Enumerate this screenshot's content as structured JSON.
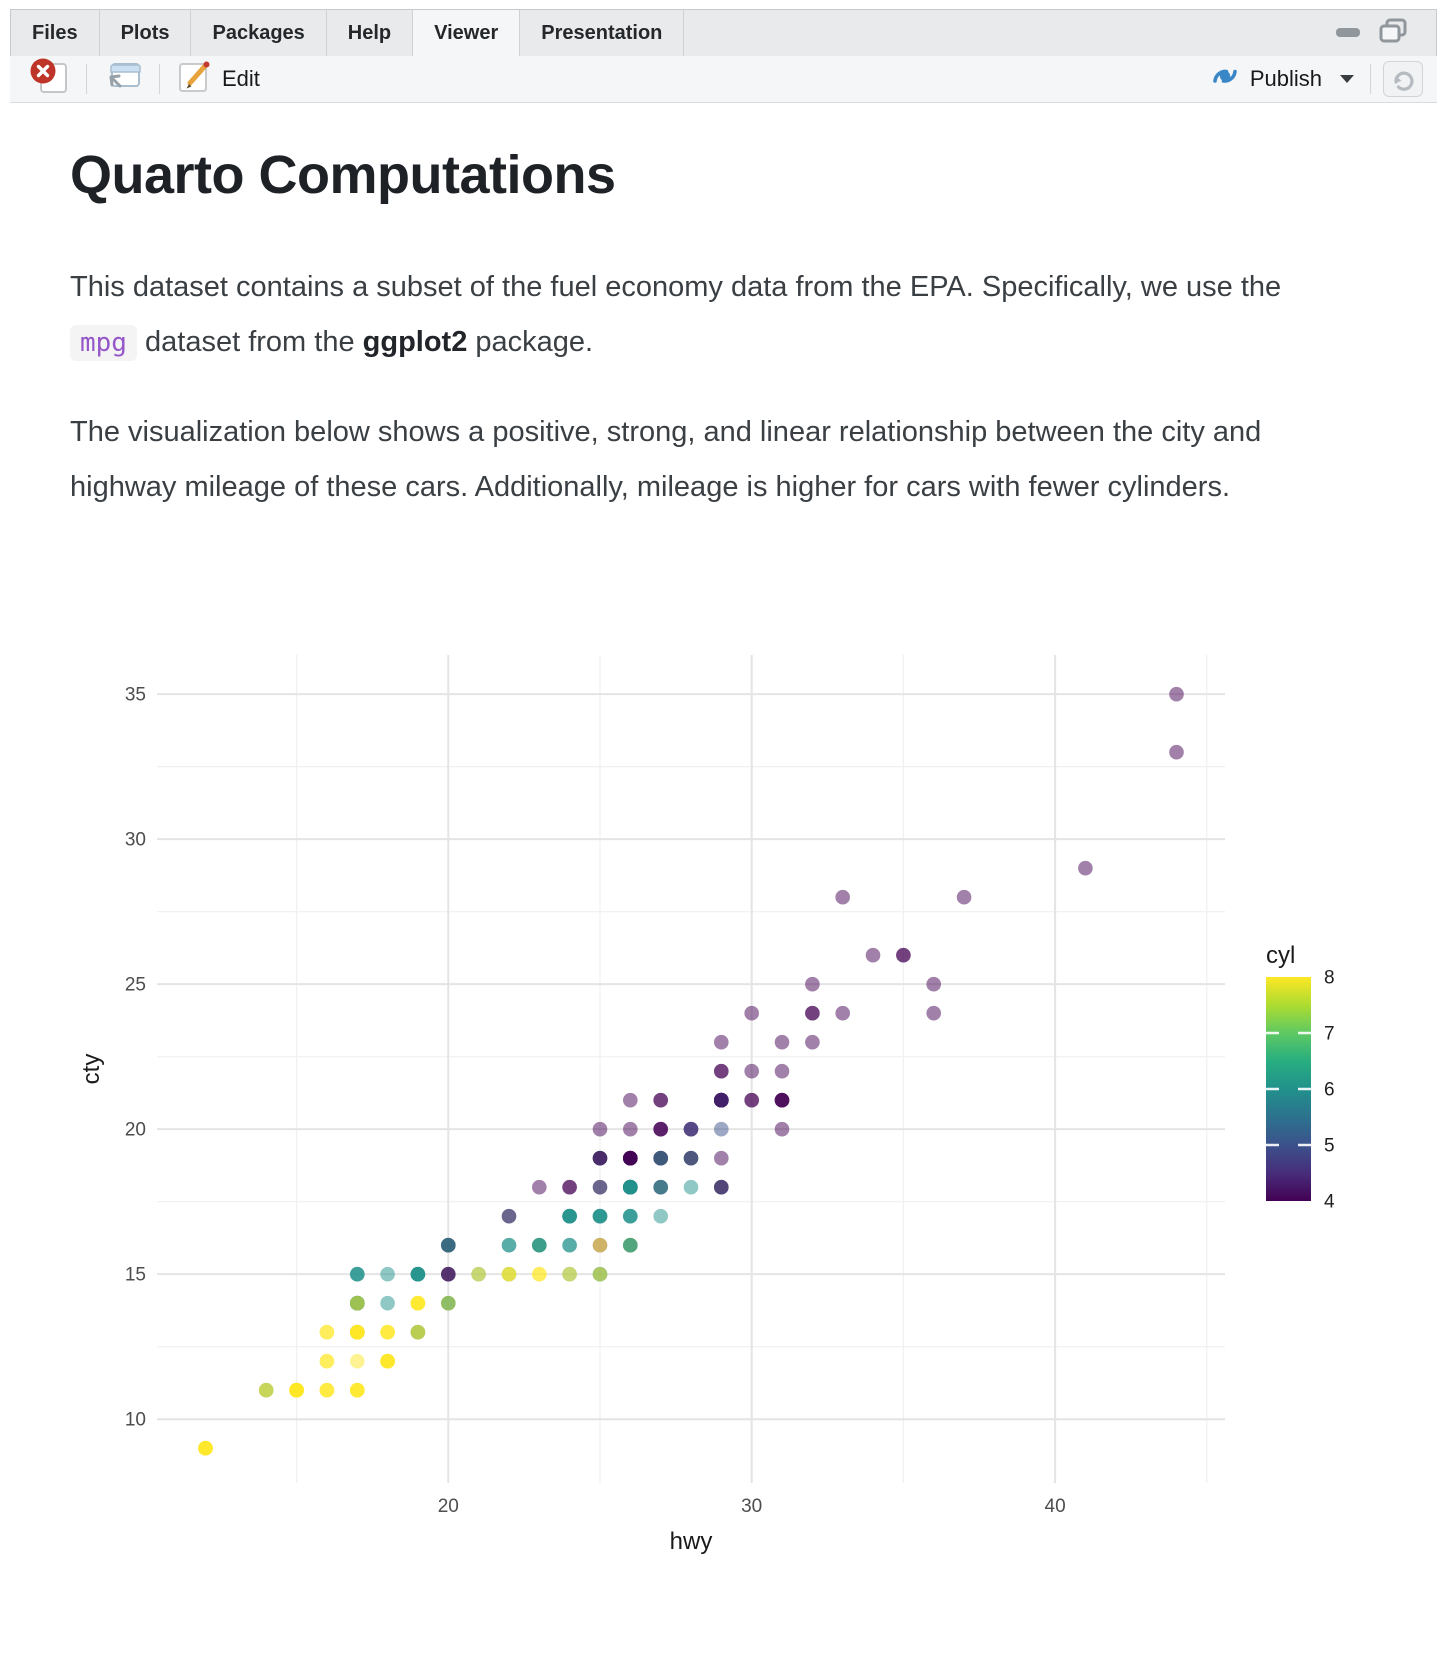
{
  "tabbar": {
    "tabs": [
      {
        "label": "Files"
      },
      {
        "label": "Plots"
      },
      {
        "label": "Packages"
      },
      {
        "label": "Help"
      },
      {
        "label": "Viewer",
        "active": true
      },
      {
        "label": "Presentation"
      }
    ]
  },
  "toolbar": {
    "edit_label": "Edit",
    "publish_label": "Publish"
  },
  "icons": {
    "stop_glyph": "✕",
    "caret_glyph": "▾"
  },
  "colors": {
    "publish_blue": "#3A87C8",
    "stop_red": "#BE3428",
    "code_text": "#9557C8",
    "code_bg": "#F4F4F5",
    "pencil_gold": "#E8A33C",
    "pencil_tip_red": "#C23B2E",
    "tick_label_gray": "#4D4D4D"
  },
  "document": {
    "title": "Quarto Computations",
    "p1_before": "This dataset contains a subset of the fuel economy data from the EPA. Specifically, we use the ",
    "p1_code": "mpg",
    "p1_mid": " dataset from the ",
    "p1_bold": "ggplot2",
    "p1_after": " package.",
    "p2": "The visualization below shows a positive, strong, and linear relationship between the city and highway mileage of these cars. Additionally, mileage is higher for cars with fewer cylinders."
  },
  "chart_data": {
    "type": "scatter",
    "xlabel": "hwy",
    "ylabel": "cty",
    "legend_title": "cyl",
    "xlim": [
      10.4,
      45.6
    ],
    "ylim": [
      7.8,
      36.35
    ],
    "x_ticks_major": [
      20,
      30,
      40
    ],
    "x_ticks_minor": [
      15,
      25,
      35,
      45
    ],
    "y_ticks_major": [
      10,
      15,
      20,
      25,
      30,
      35
    ],
    "y_ticks_minor": [
      12.5,
      17.5,
      22.5,
      27.5,
      32.5
    ],
    "grid": {
      "major_color": "#E4E4E4",
      "minor_color": "#F0F0F0",
      "major_width": 2,
      "minor_width": 1.2
    },
    "point_alpha": 0.5,
    "point_radius": 7.3,
    "color_scale": {
      "4": "#440154",
      "5": "#3B528B",
      "6": "#21918C",
      "8": "#FDE725"
    },
    "legend_range": [
      4,
      8
    ],
    "legend_labels": [
      "8",
      "7",
      "6",
      "5",
      "4"
    ],
    "legend_ticks": [
      7,
      6,
      5
    ],
    "viridis_stops": [
      "#440154",
      "#472D7B",
      "#3B528B",
      "#2C728E",
      "#21918C",
      "#28AE80",
      "#5EC962",
      "#ADDC30",
      "#FDE725"
    ],
    "points": [
      [
        12,
        9,
        [
          8,
          8,
          8,
          8,
          8
        ]
      ],
      [
        14,
        11,
        [
          8,
          6,
          8
        ]
      ],
      [
        15,
        11,
        [
          8,
          8,
          8,
          8,
          8,
          8,
          8,
          8
        ]
      ],
      [
        16,
        11,
        [
          8,
          8,
          8
        ]
      ],
      [
        17,
        11,
        [
          8,
          8,
          8,
          8
        ]
      ],
      [
        16,
        12,
        [
          8,
          8
        ]
      ],
      [
        17,
        12,
        [
          8
        ]
      ],
      [
        18,
        12,
        [
          8,
          8,
          8,
          8,
          8
        ]
      ],
      [
        16,
        13,
        [
          8,
          8
        ]
      ],
      [
        17,
        13,
        [
          8,
          6,
          6,
          8,
          8,
          8,
          8,
          8,
          8,
          8,
          8
        ]
      ],
      [
        18,
        13,
        [
          8,
          8,
          8
        ]
      ],
      [
        19,
        13,
        [
          6,
          8,
          6,
          8
        ]
      ],
      [
        17,
        14,
        [
          8,
          6,
          6,
          6,
          6,
          6,
          8,
          6,
          6,
          8
        ]
      ],
      [
        18,
        14,
        [
          6
        ]
      ],
      [
        19,
        14,
        [
          8,
          8,
          8,
          8
        ]
      ],
      [
        20,
        14,
        [
          8,
          8,
          8,
          6
        ]
      ],
      [
        17,
        15,
        [
          6,
          6,
          6
        ]
      ],
      [
        18,
        15,
        [
          6
        ]
      ],
      [
        19,
        15,
        [
          6,
          6,
          6,
          6,
          6
        ]
      ],
      [
        20,
        15,
        [
          6,
          4,
          4
        ]
      ],
      [
        21,
        15,
        [
          6,
          8
        ]
      ],
      [
        22,
        15,
        [
          6,
          8,
          8
        ]
      ],
      [
        23,
        15,
        [
          8,
          8
        ]
      ],
      [
        24,
        15,
        [
          6,
          8
        ]
      ],
      [
        25,
        15,
        [
          6,
          6,
          8
        ]
      ],
      [
        20,
        16,
        [
          4,
          6,
          4,
          6
        ]
      ],
      [
        22,
        16,
        [
          6,
          6
        ]
      ],
      [
        23,
        16,
        [
          8,
          6,
          6,
          6
        ]
      ],
      [
        24,
        16,
        [
          6,
          6
        ]
      ],
      [
        25,
        16,
        [
          4,
          8
        ]
      ],
      [
        26,
        16,
        [
          6,
          8,
          8,
          6,
          6
        ]
      ],
      [
        22,
        17,
        [
          6,
          4
        ]
      ],
      [
        24,
        17,
        [
          6,
          6,
          6,
          6,
          6
        ]
      ],
      [
        25,
        17,
        [
          6,
          6,
          6,
          6
        ]
      ],
      [
        26,
        17,
        [
          6,
          6,
          6
        ]
      ],
      [
        27,
        17,
        [
          6
        ]
      ],
      [
        23,
        18,
        [
          4
        ]
      ],
      [
        24,
        18,
        [
          4,
          4
        ]
      ],
      [
        25,
        18,
        [
          6,
          4
        ]
      ],
      [
        26,
        18,
        [
          6,
          4,
          6,
          6,
          4,
          6,
          6,
          6,
          6,
          6,
          6,
          6,
          6,
          6
        ]
      ],
      [
        27,
        18,
        [
          6,
          4,
          6
        ]
      ],
      [
        28,
        18,
        [
          6
        ]
      ],
      [
        29,
        18,
        [
          4,
          6,
          4
        ]
      ],
      [
        25,
        19,
        [
          6,
          6,
          4,
          4
        ]
      ],
      [
        26,
        19,
        [
          4,
          6,
          4,
          4,
          4,
          4,
          4,
          4
        ]
      ],
      [
        27,
        19,
        [
          4,
          4,
          4,
          6
        ]
      ],
      [
        28,
        19,
        [
          6,
          6,
          4
        ]
      ],
      [
        29,
        19,
        [
          4
        ]
      ],
      [
        25,
        20,
        [
          4
        ]
      ],
      [
        26,
        20,
        [
          4
        ]
      ],
      [
        27,
        20,
        [
          4,
          4,
          4
        ]
      ],
      [
        28,
        20,
        [
          4,
          4,
          5
        ]
      ],
      [
        29,
        20,
        [
          5
        ]
      ],
      [
        31,
        20,
        [
          4
        ]
      ],
      [
        26,
        21,
        [
          4
        ]
      ],
      [
        27,
        21,
        [
          4,
          4
        ]
      ],
      [
        29,
        21,
        [
          4,
          4,
          4,
          4,
          4,
          4,
          4,
          4,
          4,
          4,
          5,
          5,
          4
        ]
      ],
      [
        30,
        21,
        [
          4,
          4
        ]
      ],
      [
        31,
        21,
        [
          4,
          4,
          4,
          4
        ]
      ],
      [
        29,
        22,
        [
          4,
          4
        ]
      ],
      [
        30,
        22,
        [
          4
        ]
      ],
      [
        31,
        22,
        [
          4
        ]
      ],
      [
        29,
        23,
        [
          4
        ]
      ],
      [
        31,
        23,
        [
          4
        ]
      ],
      [
        32,
        23,
        [
          4
        ]
      ],
      [
        30,
        24,
        [
          4
        ]
      ],
      [
        32,
        24,
        [
          4,
          4
        ]
      ],
      [
        33,
        24,
        [
          4
        ]
      ],
      [
        36,
        24,
        [
          4
        ]
      ],
      [
        32,
        25,
        [
          4
        ]
      ],
      [
        36,
        25,
        [
          4
        ]
      ],
      [
        34,
        26,
        [
          4
        ]
      ],
      [
        35,
        26,
        [
          4,
          4
        ]
      ],
      [
        33,
        28,
        [
          4
        ]
      ],
      [
        37,
        28,
        [
          4
        ]
      ],
      [
        41,
        29,
        [
          4
        ]
      ],
      [
        44,
        33,
        [
          4
        ]
      ],
      [
        44,
        35,
        [
          4
        ]
      ]
    ]
  }
}
